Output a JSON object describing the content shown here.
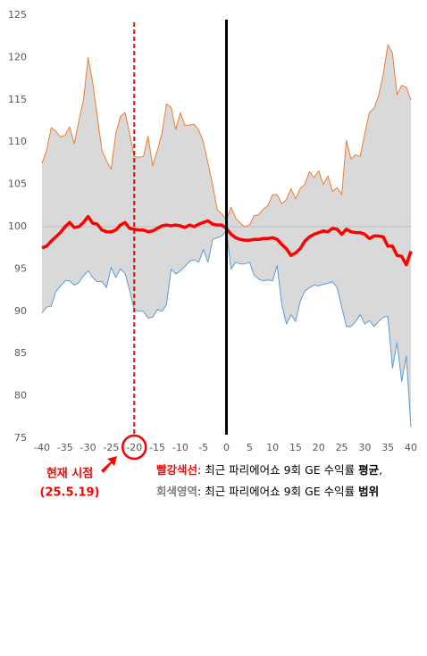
{
  "chart_data": {
    "type": "range_line",
    "x": [
      -40,
      -39,
      -38,
      -37,
      -36,
      -35,
      -34,
      -33,
      -32,
      -31,
      -30,
      -29,
      -28,
      -27,
      -26,
      -25,
      -24,
      -23,
      -22,
      -21,
      -20,
      -19,
      -18,
      -17,
      -16,
      -15,
      -14,
      -13,
      -12,
      -11,
      -10,
      -9,
      -8,
      -7,
      -6,
      -5,
      -4,
      -3,
      -2,
      -1,
      0,
      1,
      2,
      3,
      4,
      5,
      6,
      7,
      8,
      9,
      10,
      11,
      12,
      13,
      14,
      15,
      16,
      17,
      18,
      19,
      20,
      21,
      22,
      23,
      24,
      25,
      26,
      27,
      28,
      29,
      30,
      31,
      32,
      33,
      34,
      35,
      36,
      37,
      38,
      39,
      40
    ],
    "series": [
      {
        "color": "#ed7d31",
        "values": [
          107.5,
          109,
          111.7,
          111.3,
          110.6,
          110.8,
          111.8,
          109.8,
          112.5,
          115,
          120,
          117,
          113,
          109,
          107.8,
          106.8,
          111,
          113,
          113.5,
          111,
          108.3,
          108.2,
          108.3,
          110.7,
          107.2,
          109,
          111,
          114.5,
          114.1,
          111.5,
          113.5,
          112,
          112,
          112.1,
          111.4,
          110,
          107.5,
          105,
          102,
          101.5,
          100.8,
          102.3,
          101,
          100.4,
          100,
          100.2,
          101.3,
          101.4,
          102.1,
          102.5,
          103.8,
          103.8,
          102.7,
          103.2,
          104.5,
          103.3,
          104.5,
          105,
          106.5,
          105.8,
          106.6,
          105,
          106,
          104.2,
          104.6,
          103.8,
          110.2,
          108,
          108.5,
          108.3,
          111,
          113.5,
          114,
          115.5,
          118,
          121.5,
          120.5,
          115.6,
          116.7,
          116.5,
          115
        ]
      },
      {
        "color": "#5b9bd5",
        "values": [
          89.8,
          90.5,
          90.6,
          92.3,
          93,
          93.6,
          93.6,
          93.1,
          93.4,
          94.2,
          94.8,
          94,
          93.5,
          93.5,
          92.8,
          95.2,
          94,
          95,
          94.5,
          92.5,
          90.2,
          90,
          90,
          89.2,
          89.3,
          90.2,
          90,
          90.8,
          95,
          94.4,
          94.8,
          95.3,
          95.9,
          96.1,
          95.8,
          97.3,
          95.8,
          98.5,
          98.7,
          98.9,
          99.5,
          95,
          95.8,
          95.6,
          95.6,
          95.8,
          94.3,
          93.8,
          93.6,
          93.7,
          93.6,
          95.4,
          90.8,
          88.5,
          89.6,
          88.8,
          91.2,
          92.4,
          92.8,
          93.1,
          93,
          93.2,
          93.3,
          93.5,
          92.8,
          90.5,
          88.2,
          88.2,
          88.8,
          89.6,
          88.5,
          88.9,
          88.2,
          88.8,
          89.3,
          89.4,
          83.3,
          86.3,
          81.7,
          84.7,
          76.3
        ]
      },
      {
        "color": "#ff0000",
        "values": [
          97.5,
          97.7,
          98.3,
          98.8,
          99.3,
          100,
          100.5,
          99.9,
          100,
          100.5,
          101.2,
          100.4,
          100.3,
          99.6,
          99.4,
          99.4,
          99.6,
          100.2,
          100.5,
          99.8,
          99.7,
          99.6,
          99.6,
          99.4,
          99.5,
          99.8,
          100.1,
          100.2,
          100.1,
          100.2,
          100.1,
          99.9,
          100.2,
          100,
          100.3,
          100.5,
          100.7,
          100.3,
          100.2,
          100.2,
          99.8,
          99.1,
          98.7,
          98.5,
          98.4,
          98.4,
          98.5,
          98.5,
          98.6,
          98.6,
          98.7,
          98.5,
          97.9,
          97.4,
          96.6,
          96.9,
          97.4,
          98.3,
          98.8,
          99.1,
          99.3,
          99.5,
          99.4,
          99.8,
          99.7,
          99.1,
          99.7,
          99.4,
          99.3,
          99.3,
          99.1,
          98.6,
          98.9,
          98.9,
          98.8,
          97.7,
          97.7,
          96.6,
          96.5,
          95.5,
          97.1
        ]
      }
    ],
    "fill": "#d9d9d9",
    "xlim": [
      -40,
      40
    ],
    "xticks": [
      -40,
      -35,
      -30,
      -25,
      -20,
      -15,
      -10,
      -5,
      0,
      5,
      10,
      15,
      20,
      25,
      30,
      35,
      40
    ],
    "ylim": [
      75,
      125
    ],
    "yticks": [
      75,
      80,
      85,
      90,
      95,
      100,
      105,
      110,
      115,
      120,
      125
    ],
    "reference_lines": {
      "x": [
        -20,
        0
      ],
      "y": 100
    },
    "annotations": [
      "현재 시점",
      "(25.5.19)"
    ],
    "notes": [
      [
        "빨강색선",
        ": 최근 파리에어쇼 9회 GE 수익률 ",
        "평균",
        ","
      ],
      [
        "회색영역",
        ": 최근 파리에어쇼 9회 GE 수익률 ",
        "범위"
      ]
    ]
  }
}
